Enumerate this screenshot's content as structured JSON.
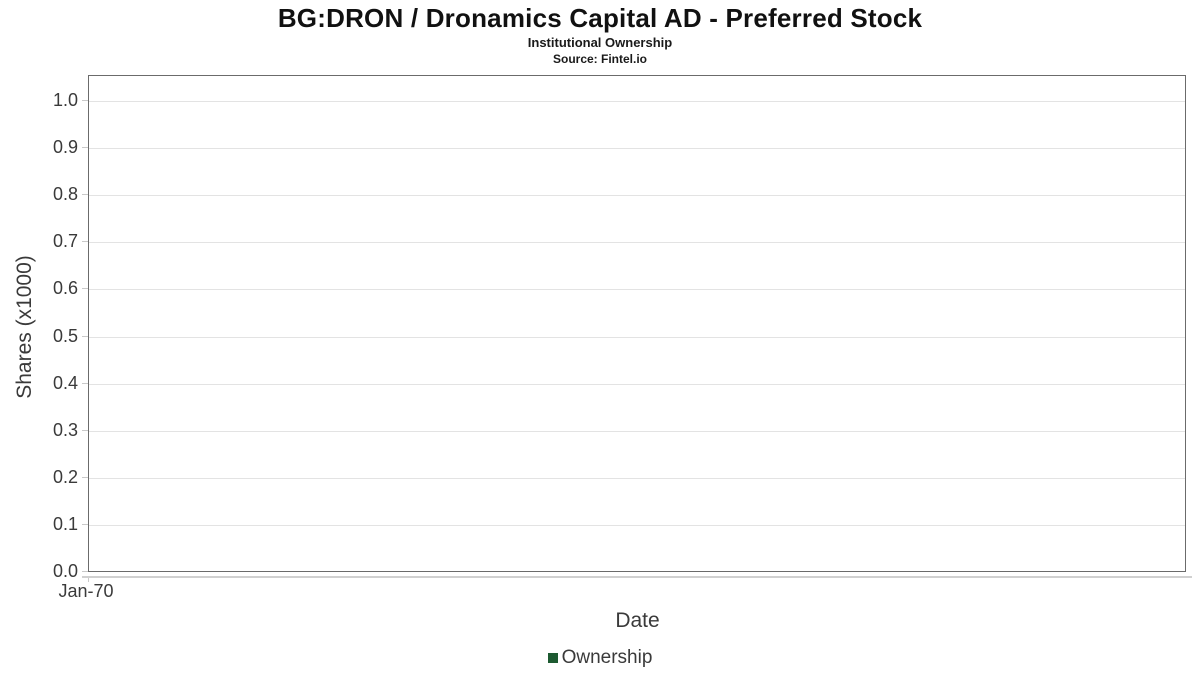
{
  "header": {
    "title": "BG:DRON / Dronamics Capital AD - Preferred Stock",
    "subtitle": "Institutional Ownership",
    "source": "Source: Fintel.io"
  },
  "chart_data": {
    "type": "bar",
    "title": "BG:DRON / Dronamics Capital AD - Preferred Stock",
    "subtitle": "Institutional Ownership",
    "source": "Source: Fintel.io",
    "xlabel": "Date",
    "ylabel": "Shares (x1000)",
    "x_tick_labels": [
      "Jan-70"
    ],
    "y_ticks": [
      1.0,
      0.9,
      0.8,
      0.7,
      0.6,
      0.5,
      0.4,
      0.3,
      0.2,
      0.1,
      0.0
    ],
    "ylim": [
      0.0,
      1.05
    ],
    "grid": true,
    "legend": {
      "position": "bottom",
      "entries": [
        {
          "label": "Ownership",
          "color": "#1d5a31"
        }
      ]
    },
    "series": [
      {
        "name": "Ownership",
        "x": [],
        "values": []
      }
    ]
  },
  "colors": {
    "legend_swatch": "#1d5a31",
    "plot_border": "#6b6b6b",
    "gridline": "#e3e3e3",
    "axis_line": "#d0d0d0",
    "tick_text": "#3a3a3a",
    "title_text": "#111111"
  }
}
